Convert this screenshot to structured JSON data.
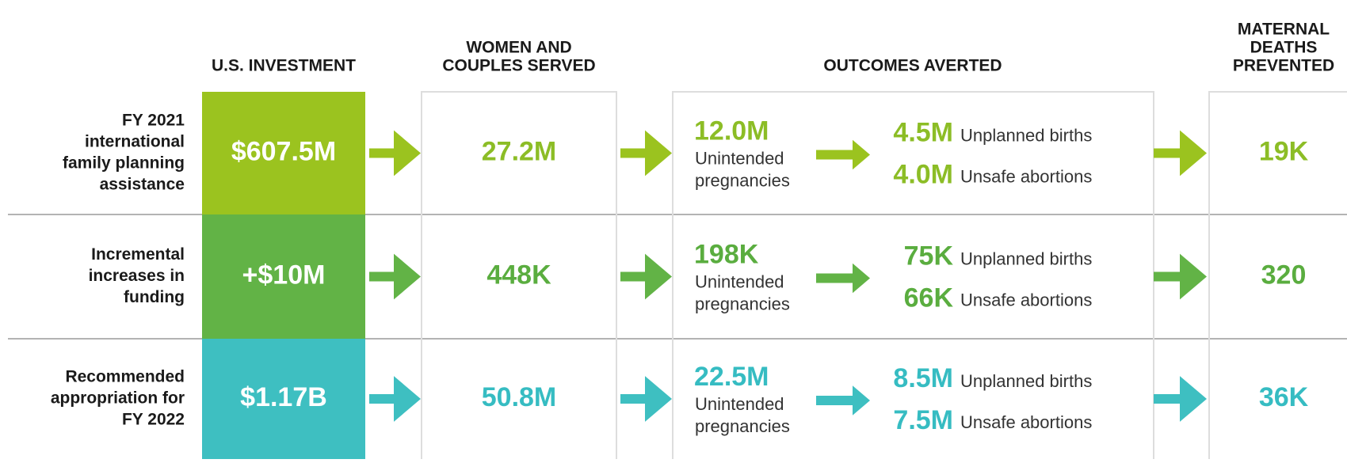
{
  "headers": {
    "investment": [
      "U.S. INVESTMENT"
    ],
    "served": [
      "WOMEN AND",
      "COUPLES SERVED"
    ],
    "outcomes": [
      "OUTCOMES AVERTED"
    ],
    "deaths": [
      "MATERNAL",
      "DEATHS",
      "PREVENTED"
    ]
  },
  "rows": [
    {
      "label": [
        "FY 2021",
        "international",
        "family planning",
        "assistance"
      ],
      "color": "#9bc31f",
      "text_color": "#8cbd26",
      "investment": "$607.5M",
      "served": "27.2M",
      "pregnancies": "12.0M",
      "pregnancies_label": [
        "Unintended",
        "pregnancies"
      ],
      "births": "4.5M",
      "births_label": "Unplanned births",
      "abortions": "4.0M",
      "abortions_label": "Unsafe abortions",
      "deaths": "19K"
    },
    {
      "label": [
        "Incremental",
        "increases in",
        "funding"
      ],
      "color": "#62b346",
      "text_color": "#5aad3f",
      "investment": "+$10M",
      "served": "448K",
      "pregnancies": "198K",
      "pregnancies_label": [
        "Unintended",
        "pregnancies"
      ],
      "births": "75K",
      "births_label": "Unplanned births",
      "abortions": "66K",
      "abortions_label": "Unsafe abortions",
      "deaths": "320"
    },
    {
      "label": [
        "Recommended",
        "appropriation for",
        "FY 2022"
      ],
      "color": "#3ebfc1",
      "text_color": "#36bcc2",
      "investment": "$1.17B",
      "served": "50.8M",
      "pregnancies": "22.5M",
      "pregnancies_label": [
        "Unintended",
        "pregnancies"
      ],
      "births": "8.5M",
      "births_label": "Unplanned births",
      "abortions": "7.5M",
      "abortions_label": "Unsafe abortions",
      "deaths": "36K"
    }
  ]
}
